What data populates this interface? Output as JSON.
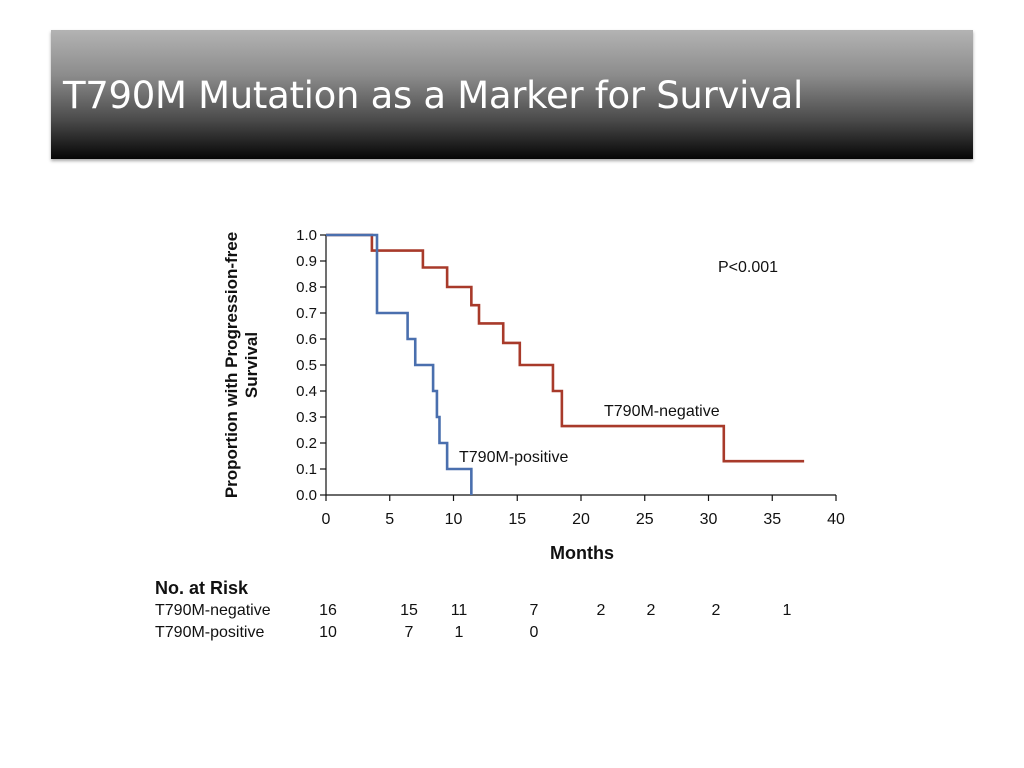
{
  "slide": {
    "title": "T790M Mutation as a Marker for Survival"
  },
  "chart_data": {
    "type": "line",
    "title": "",
    "xlabel": "Months",
    "ylabel": "Proportion with Progression-free Survival",
    "xlim": [
      0,
      40
    ],
    "ylim": [
      0.0,
      1.0
    ],
    "x_ticks": [
      "0",
      "5",
      "10",
      "15",
      "20",
      "25",
      "30",
      "35",
      "40"
    ],
    "y_ticks": [
      "0.0",
      "0.1",
      "0.2",
      "0.3",
      "0.4",
      "0.5",
      "0.6",
      "0.7",
      "0.8",
      "0.9",
      "1.0"
    ],
    "grid": false,
    "annotation": "P<0.001",
    "series": [
      {
        "name": "T790M-negative",
        "color": "#a83a2a",
        "step": true,
        "points": [
          [
            0,
            1.0
          ],
          [
            3.6,
            0.94
          ],
          [
            7.6,
            0.875
          ],
          [
            9.5,
            0.8
          ],
          [
            11.4,
            0.73
          ],
          [
            12.0,
            0.66
          ],
          [
            13.9,
            0.585
          ],
          [
            15.2,
            0.5
          ],
          [
            17.8,
            0.4
          ],
          [
            18.5,
            0.265
          ],
          [
            31.2,
            0.13
          ],
          [
            37.5,
            0.13
          ]
        ]
      },
      {
        "name": "T790M-positive",
        "color": "#4a6fae",
        "step": true,
        "points": [
          [
            0,
            1.0
          ],
          [
            4.0,
            0.7
          ],
          [
            6.4,
            0.6
          ],
          [
            7.0,
            0.5
          ],
          [
            8.4,
            0.4
          ],
          [
            8.7,
            0.3
          ],
          [
            8.9,
            0.2
          ],
          [
            9.5,
            0.1
          ],
          [
            11.4,
            0.0
          ]
        ]
      }
    ]
  },
  "risk_table": {
    "heading": "No. at Risk",
    "rows": [
      {
        "label": "T790M-negative",
        "values": [
          "16",
          "15",
          "11",
          "7",
          "2",
          "2",
          "2",
          "1"
        ]
      },
      {
        "label": "T790M-positive",
        "values": [
          "10",
          "7",
          "1",
          "0"
        ]
      }
    ]
  }
}
